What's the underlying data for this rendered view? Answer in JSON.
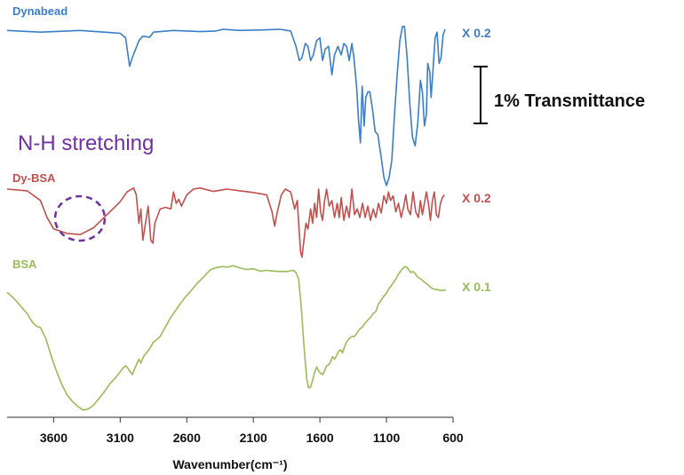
{
  "chart_data": {
    "type": "line",
    "title": "",
    "xlabel": "Wavenumber(cm⁻¹)",
    "ylabel": "",
    "x_reversed": true,
    "xlim": [
      3950,
      600
    ],
    "x_ticks": [
      "3600",
      "3100",
      "2600",
      "2100",
      "1600",
      "1100",
      "600"
    ],
    "x_tick_values": [
      3600,
      3100,
      2600,
      2100,
      1600,
      1100,
      600
    ],
    "y_units": "% Transmittance (arbitrary offset)",
    "scale_bar": {
      "label": "1% Transmittance",
      "value": 1
    },
    "annotations": [
      {
        "text": "N-H stretching",
        "color": "#7030a0"
      }
    ],
    "series": [
      {
        "name": "Dynabead",
        "scale_label": "X 0.2",
        "color": "#3a7ec8",
        "points": [
          [
            3950,
            0.02
          ],
          [
            3700,
            0.05
          ],
          [
            3400,
            0.02
          ],
          [
            3100,
            0.07
          ],
          [
            3060,
            0.15
          ],
          [
            3030,
            0.65
          ],
          [
            3010,
            0.5
          ],
          [
            2960,
            0.2
          ],
          [
            2930,
            0.12
          ],
          [
            2880,
            0.14
          ],
          [
            2850,
            0.05
          ],
          [
            2700,
            0.02
          ],
          [
            2500,
            0.04
          ],
          [
            2380,
            0.03
          ],
          [
            2330,
            0.0
          ],
          [
            2200,
            0.02
          ],
          [
            2000,
            0.01
          ],
          [
            1900,
            0.0
          ],
          [
            1820,
            0.03
          ],
          [
            1780,
            0.3
          ],
          [
            1755,
            0.55
          ],
          [
            1735,
            0.5
          ],
          [
            1710,
            0.25
          ],
          [
            1690,
            0.3
          ],
          [
            1670,
            0.55
          ],
          [
            1650,
            0.45
          ],
          [
            1625,
            0.2
          ],
          [
            1600,
            0.15
          ],
          [
            1580,
            0.55
          ],
          [
            1560,
            0.35
          ],
          [
            1535,
            0.3
          ],
          [
            1510,
            0.8
          ],
          [
            1490,
            0.45
          ],
          [
            1465,
            0.3
          ],
          [
            1440,
            0.45
          ],
          [
            1420,
            0.25
          ],
          [
            1400,
            0.3
          ],
          [
            1380,
            0.55
          ],
          [
            1360,
            0.25
          ],
          [
            1345,
            0.5
          ],
          [
            1325,
            1.0
          ],
          [
            1310,
            1.6
          ],
          [
            1296,
            2.0
          ],
          [
            1283,
            1.0
          ],
          [
            1268,
            1.7
          ],
          [
            1255,
            1.2
          ],
          [
            1240,
            1.1
          ],
          [
            1225,
            1.1
          ],
          [
            1205,
            1.4
          ],
          [
            1185,
            1.8
          ],
          [
            1165,
            1.85
          ],
          [
            1140,
            2.25
          ],
          [
            1120,
            2.6
          ],
          [
            1100,
            2.75
          ],
          [
            1080,
            2.6
          ],
          [
            1060,
            2.3
          ],
          [
            1040,
            1.5
          ],
          [
            1020,
            0.8
          ],
          [
            1000,
            0.2
          ],
          [
            980,
            -0.05
          ],
          [
            965,
            -0.05
          ],
          [
            945,
            0.5
          ],
          [
            925,
            1.3
          ],
          [
            905,
            1.9
          ],
          [
            885,
            2.05
          ],
          [
            865,
            1.65
          ],
          [
            845,
            0.9
          ],
          [
            830,
            1.1
          ],
          [
            815,
            1.7
          ],
          [
            800,
            1.5
          ],
          [
            790,
            0.6
          ],
          [
            775,
            0.75
          ],
          [
            765,
            1.2
          ],
          [
            750,
            0.7
          ],
          [
            735,
            0.15
          ],
          [
            720,
            0.05
          ],
          [
            705,
            0.6
          ],
          [
            690,
            0.5
          ],
          [
            675,
            0.1
          ],
          [
            660,
            0.0
          ]
        ]
      },
      {
        "name": "Dy-BSA",
        "scale_label": "X 0.2",
        "color": "#c0504d",
        "points": [
          [
            3950,
            0.0
          ],
          [
            3800,
            0.03
          ],
          [
            3700,
            0.2
          ],
          [
            3650,
            0.5
          ],
          [
            3600,
            0.7
          ],
          [
            3500,
            0.78
          ],
          [
            3400,
            0.8
          ],
          [
            3300,
            0.68
          ],
          [
            3200,
            0.45
          ],
          [
            3100,
            0.22
          ],
          [
            3050,
            0.05
          ],
          [
            3000,
            -0.02
          ],
          [
            2980,
            0.1
          ],
          [
            2960,
            0.6
          ],
          [
            2945,
            0.35
          ],
          [
            2930,
            0.9
          ],
          [
            2910,
            0.6
          ],
          [
            2890,
            0.3
          ],
          [
            2870,
            0.9
          ],
          [
            2855,
            0.95
          ],
          [
            2840,
            0.6
          ],
          [
            2800,
            0.35
          ],
          [
            2760,
            0.32
          ],
          [
            2720,
            0.35
          ],
          [
            2700,
            0.05
          ],
          [
            2680,
            0.25
          ],
          [
            2660,
            0.18
          ],
          [
            2640,
            0.3
          ],
          [
            2600,
            0.1
          ],
          [
            2550,
            0.0
          ],
          [
            2500,
            -0.02
          ],
          [
            2400,
            0.04
          ],
          [
            2300,
            0.0
          ],
          [
            2200,
            0.03
          ],
          [
            2100,
            0.06
          ],
          [
            2000,
            0.1
          ],
          [
            1960,
            0.4
          ],
          [
            1940,
            0.65
          ],
          [
            1920,
            0.4
          ],
          [
            1890,
            0.1
          ],
          [
            1860,
            0.0
          ],
          [
            1820,
            0.05
          ],
          [
            1790,
            0.35
          ],
          [
            1770,
            0.2
          ],
          [
            1760,
            0.6
          ],
          [
            1745,
            1.1
          ],
          [
            1735,
            1.2
          ],
          [
            1725,
            1.0
          ],
          [
            1705,
            0.6
          ],
          [
            1690,
            0.7
          ],
          [
            1670,
            0.35
          ],
          [
            1655,
            0.6
          ],
          [
            1640,
            0.25
          ],
          [
            1625,
            0.5
          ],
          [
            1610,
            0.0
          ],
          [
            1595,
            0.4
          ],
          [
            1580,
            0.55
          ],
          [
            1565,
            0.2
          ],
          [
            1550,
            0.0
          ],
          [
            1530,
            0.3
          ],
          [
            1510,
            0.2
          ],
          [
            1490,
            0.5
          ],
          [
            1470,
            0.25
          ],
          [
            1455,
            0.5
          ],
          [
            1440,
            0.15
          ],
          [
            1420,
            0.55
          ],
          [
            1400,
            0.3
          ],
          [
            1380,
            0.5
          ],
          [
            1360,
            0.0
          ],
          [
            1340,
            0.45
          ],
          [
            1320,
            0.35
          ],
          [
            1300,
            0.5
          ],
          [
            1280,
            0.25
          ],
          [
            1260,
            0.5
          ],
          [
            1240,
            0.3
          ],
          [
            1220,
            0.55
          ],
          [
            1200,
            0.35
          ],
          [
            1180,
            0.5
          ],
          [
            1160,
            0.25
          ],
          [
            1140,
            0.42
          ],
          [
            1120,
            0.12
          ],
          [
            1100,
            0.25
          ],
          [
            1085,
            0.05
          ],
          [
            1070,
            0.2
          ],
          [
            1050,
            0.12
          ],
          [
            1030,
            0.4
          ],
          [
            1010,
            0.25
          ],
          [
            990,
            0.5
          ],
          [
            970,
            0.3
          ],
          [
            955,
            0.1
          ],
          [
            940,
            0.35
          ],
          [
            920,
            0.45
          ],
          [
            900,
            0.05
          ],
          [
            880,
            0.4
          ],
          [
            860,
            0.5
          ],
          [
            845,
            0.2
          ],
          [
            830,
            0.45
          ],
          [
            815,
            0.25
          ],
          [
            800,
            0.05
          ],
          [
            785,
            0.25
          ],
          [
            770,
            0.55
          ],
          [
            755,
            0.2
          ],
          [
            740,
            0.05
          ],
          [
            725,
            0.45
          ],
          [
            710,
            0.5
          ],
          [
            695,
            0.25
          ],
          [
            680,
            0.15
          ],
          [
            665,
            0.1
          ]
        ]
      },
      {
        "name": "BSA",
        "scale_label": "X 0.1",
        "color": "#9bbb59",
        "points": [
          [
            3950,
            0.8
          ],
          [
            3900,
            0.95
          ],
          [
            3850,
            1.15
          ],
          [
            3800,
            1.35
          ],
          [
            3760,
            1.58
          ],
          [
            3730,
            1.68
          ],
          [
            3700,
            1.72
          ],
          [
            3660,
            2.0
          ],
          [
            3620,
            2.45
          ],
          [
            3580,
            2.85
          ],
          [
            3540,
            3.2
          ],
          [
            3500,
            3.48
          ],
          [
            3460,
            3.65
          ],
          [
            3420,
            3.78
          ],
          [
            3380,
            3.88
          ],
          [
            3340,
            3.85
          ],
          [
            3300,
            3.75
          ],
          [
            3260,
            3.58
          ],
          [
            3220,
            3.4
          ],
          [
            3180,
            3.2
          ],
          [
            3140,
            3.05
          ],
          [
            3100,
            2.88
          ],
          [
            3080,
            2.78
          ],
          [
            3060,
            2.72
          ],
          [
            3050,
            2.75
          ],
          [
            3030,
            2.85
          ],
          [
            3010,
            2.95
          ],
          [
            2990,
            2.78
          ],
          [
            2960,
            2.55
          ],
          [
            2945,
            2.65
          ],
          [
            2925,
            2.48
          ],
          [
            2880,
            2.28
          ],
          [
            2850,
            2.1
          ],
          [
            2830,
            2.05
          ],
          [
            2800,
            1.95
          ],
          [
            2760,
            1.7
          ],
          [
            2720,
            1.45
          ],
          [
            2680,
            1.25
          ],
          [
            2640,
            1.05
          ],
          [
            2600,
            0.88
          ],
          [
            2560,
            0.72
          ],
          [
            2520,
            0.55
          ],
          [
            2480,
            0.42
          ],
          [
            2450,
            0.3
          ],
          [
            2420,
            0.2
          ],
          [
            2380,
            0.15
          ],
          [
            2330,
            0.12
          ],
          [
            2300,
            0.14
          ],
          [
            2250,
            0.1
          ],
          [
            2200,
            0.16
          ],
          [
            2150,
            0.2
          ],
          [
            2100,
            0.18
          ],
          [
            2050,
            0.24
          ],
          [
            2000,
            0.22
          ],
          [
            1950,
            0.24
          ],
          [
            1900,
            0.25
          ],
          [
            1850,
            0.25
          ],
          [
            1800,
            0.22
          ],
          [
            1780,
            0.28
          ],
          [
            1760,
            0.45
          ],
          [
            1740,
            1.2
          ],
          [
            1720,
            2.2
          ],
          [
            1700,
            3.05
          ],
          [
            1685,
            3.3
          ],
          [
            1670,
            3.28
          ],
          [
            1655,
            3.1
          ],
          [
            1640,
            2.9
          ],
          [
            1625,
            2.75
          ],
          [
            1610,
            2.85
          ],
          [
            1595,
            2.92
          ],
          [
            1580,
            2.95
          ],
          [
            1565,
            2.85
          ],
          [
            1550,
            2.72
          ],
          [
            1535,
            2.7
          ],
          [
            1520,
            2.62
          ],
          [
            1505,
            2.48
          ],
          [
            1490,
            2.55
          ],
          [
            1475,
            2.45
          ],
          [
            1460,
            2.35
          ],
          [
            1445,
            2.3
          ],
          [
            1430,
            2.38
          ],
          [
            1415,
            2.22
          ],
          [
            1400,
            2.1
          ],
          [
            1385,
            2.02
          ],
          [
            1370,
            1.98
          ],
          [
            1355,
            1.95
          ],
          [
            1340,
            1.95
          ],
          [
            1320,
            1.85
          ],
          [
            1300,
            1.75
          ],
          [
            1280,
            1.7
          ],
          [
            1260,
            1.6
          ],
          [
            1240,
            1.52
          ],
          [
            1220,
            1.45
          ],
          [
            1200,
            1.35
          ],
          [
            1180,
            1.3
          ],
          [
            1160,
            1.1
          ],
          [
            1140,
            1.0
          ],
          [
            1120,
            0.9
          ],
          [
            1100,
            0.82
          ],
          [
            1085,
            0.72
          ],
          [
            1070,
            0.65
          ],
          [
            1050,
            0.55
          ],
          [
            1030,
            0.45
          ],
          [
            1010,
            0.32
          ],
          [
            990,
            0.22
          ],
          [
            975,
            0.16
          ],
          [
            960,
            0.12
          ],
          [
            945,
            0.15
          ],
          [
            930,
            0.22
          ],
          [
            915,
            0.28
          ],
          [
            900,
            0.25
          ],
          [
            885,
            0.3
          ],
          [
            870,
            0.38
          ],
          [
            855,
            0.42
          ],
          [
            840,
            0.45
          ],
          [
            825,
            0.5
          ],
          [
            810,
            0.55
          ],
          [
            795,
            0.58
          ],
          [
            780,
            0.62
          ],
          [
            765,
            0.68
          ],
          [
            750,
            0.7
          ],
          [
            735,
            0.72
          ],
          [
            720,
            0.72
          ],
          [
            705,
            0.74
          ],
          [
            690,
            0.75
          ],
          [
            670,
            0.74
          ],
          [
            655,
            0.74
          ]
        ]
      }
    ]
  }
}
